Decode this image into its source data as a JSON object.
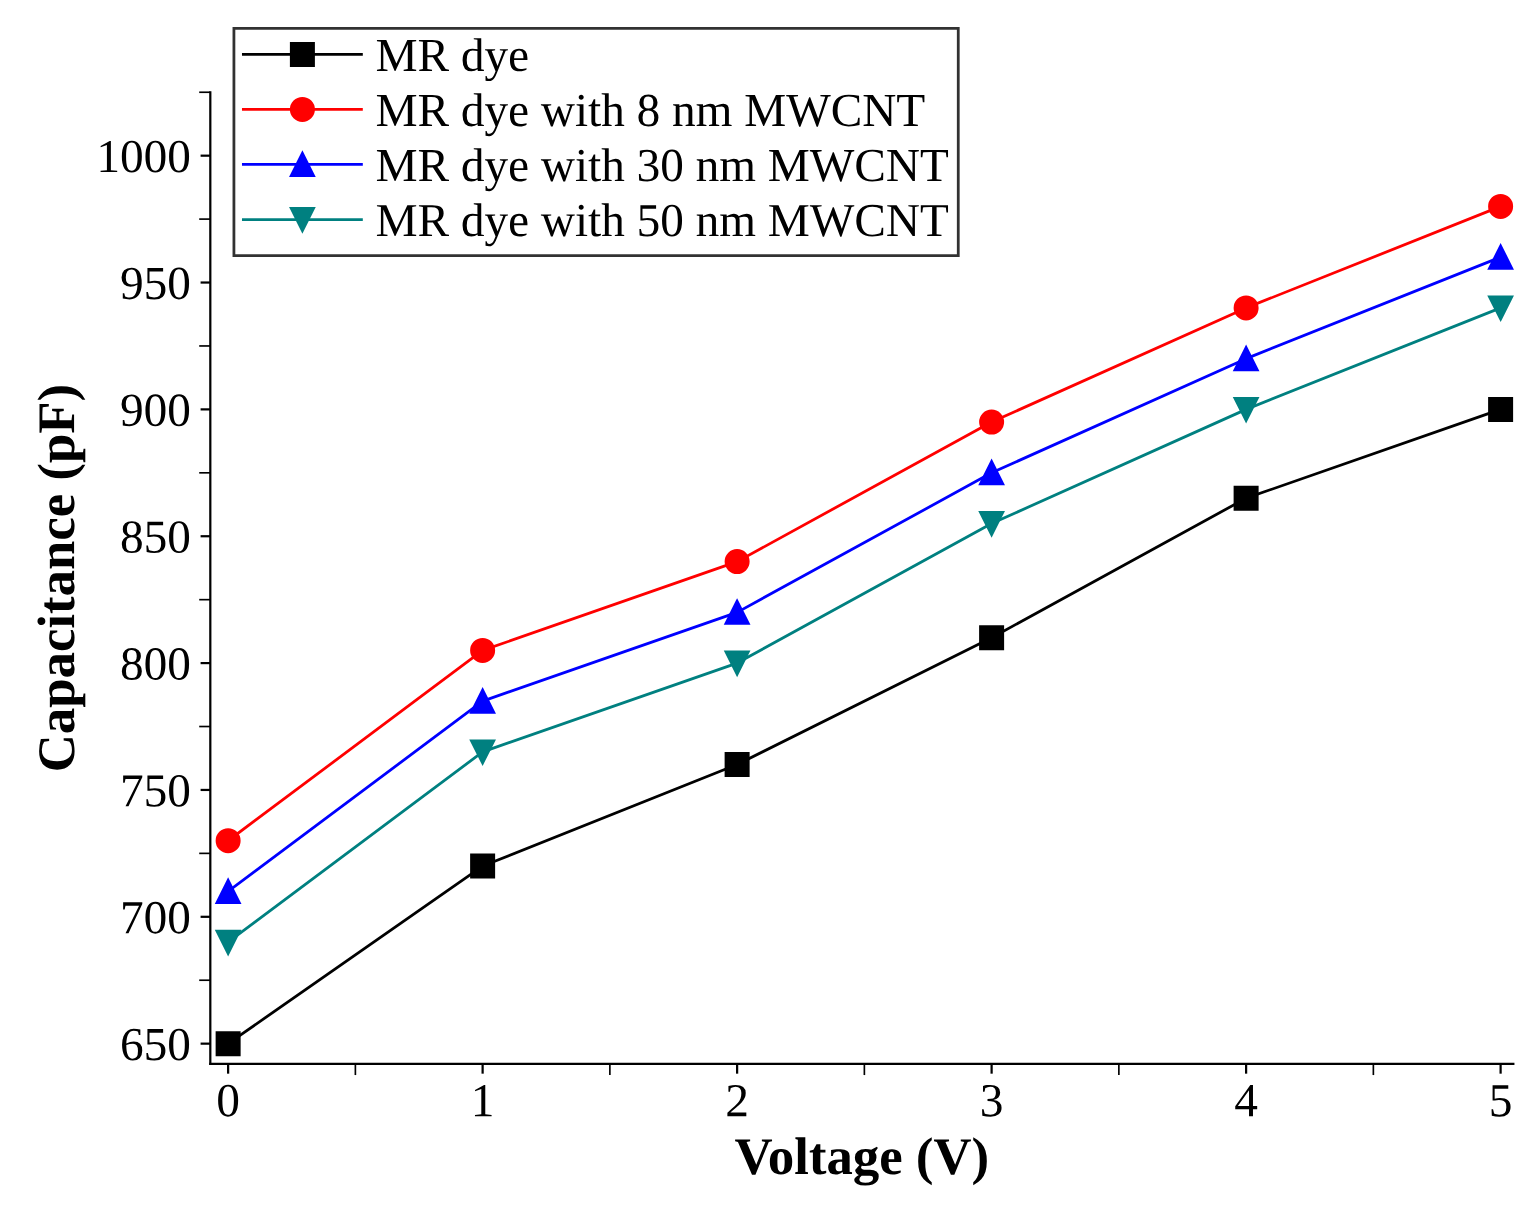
{
  "chart_data": {
    "type": "line",
    "xlabel": "Voltage (V)",
    "ylabel": "Capacitance (pF)",
    "x": [
      0,
      1,
      2,
      3,
      4,
      5
    ],
    "xlim": [
      -0.07,
      5.05
    ],
    "ylim": [
      642,
      1025
    ],
    "xticks": [
      0,
      1,
      2,
      3,
      4,
      5
    ],
    "yticks": [
      650,
      700,
      750,
      800,
      850,
      900,
      950,
      1000
    ],
    "grid": false,
    "legend": "top left",
    "line_style": "solid",
    "series": [
      {
        "name": "MR dye",
        "color": "#000000",
        "marker": "square",
        "values": [
          650,
          720,
          760,
          810,
          865,
          900
        ]
      },
      {
        "name": "MR dye with 8 nm MWCNT",
        "color": "#ff0000",
        "marker": "circle",
        "values": [
          730,
          805,
          840,
          895,
          940,
          980
        ]
      },
      {
        "name": "MR dye with 30 nm MWCNT",
        "color": "#0000ff",
        "marker": "triangle",
        "values": [
          710,
          785,
          820,
          875,
          920,
          960
        ]
      },
      {
        "name": "MR dye with 50 nm MWCNT",
        "color": "#008080",
        "marker": "triangle_down",
        "values": [
          690,
          765,
          800,
          855,
          900,
          940
        ]
      }
    ]
  }
}
